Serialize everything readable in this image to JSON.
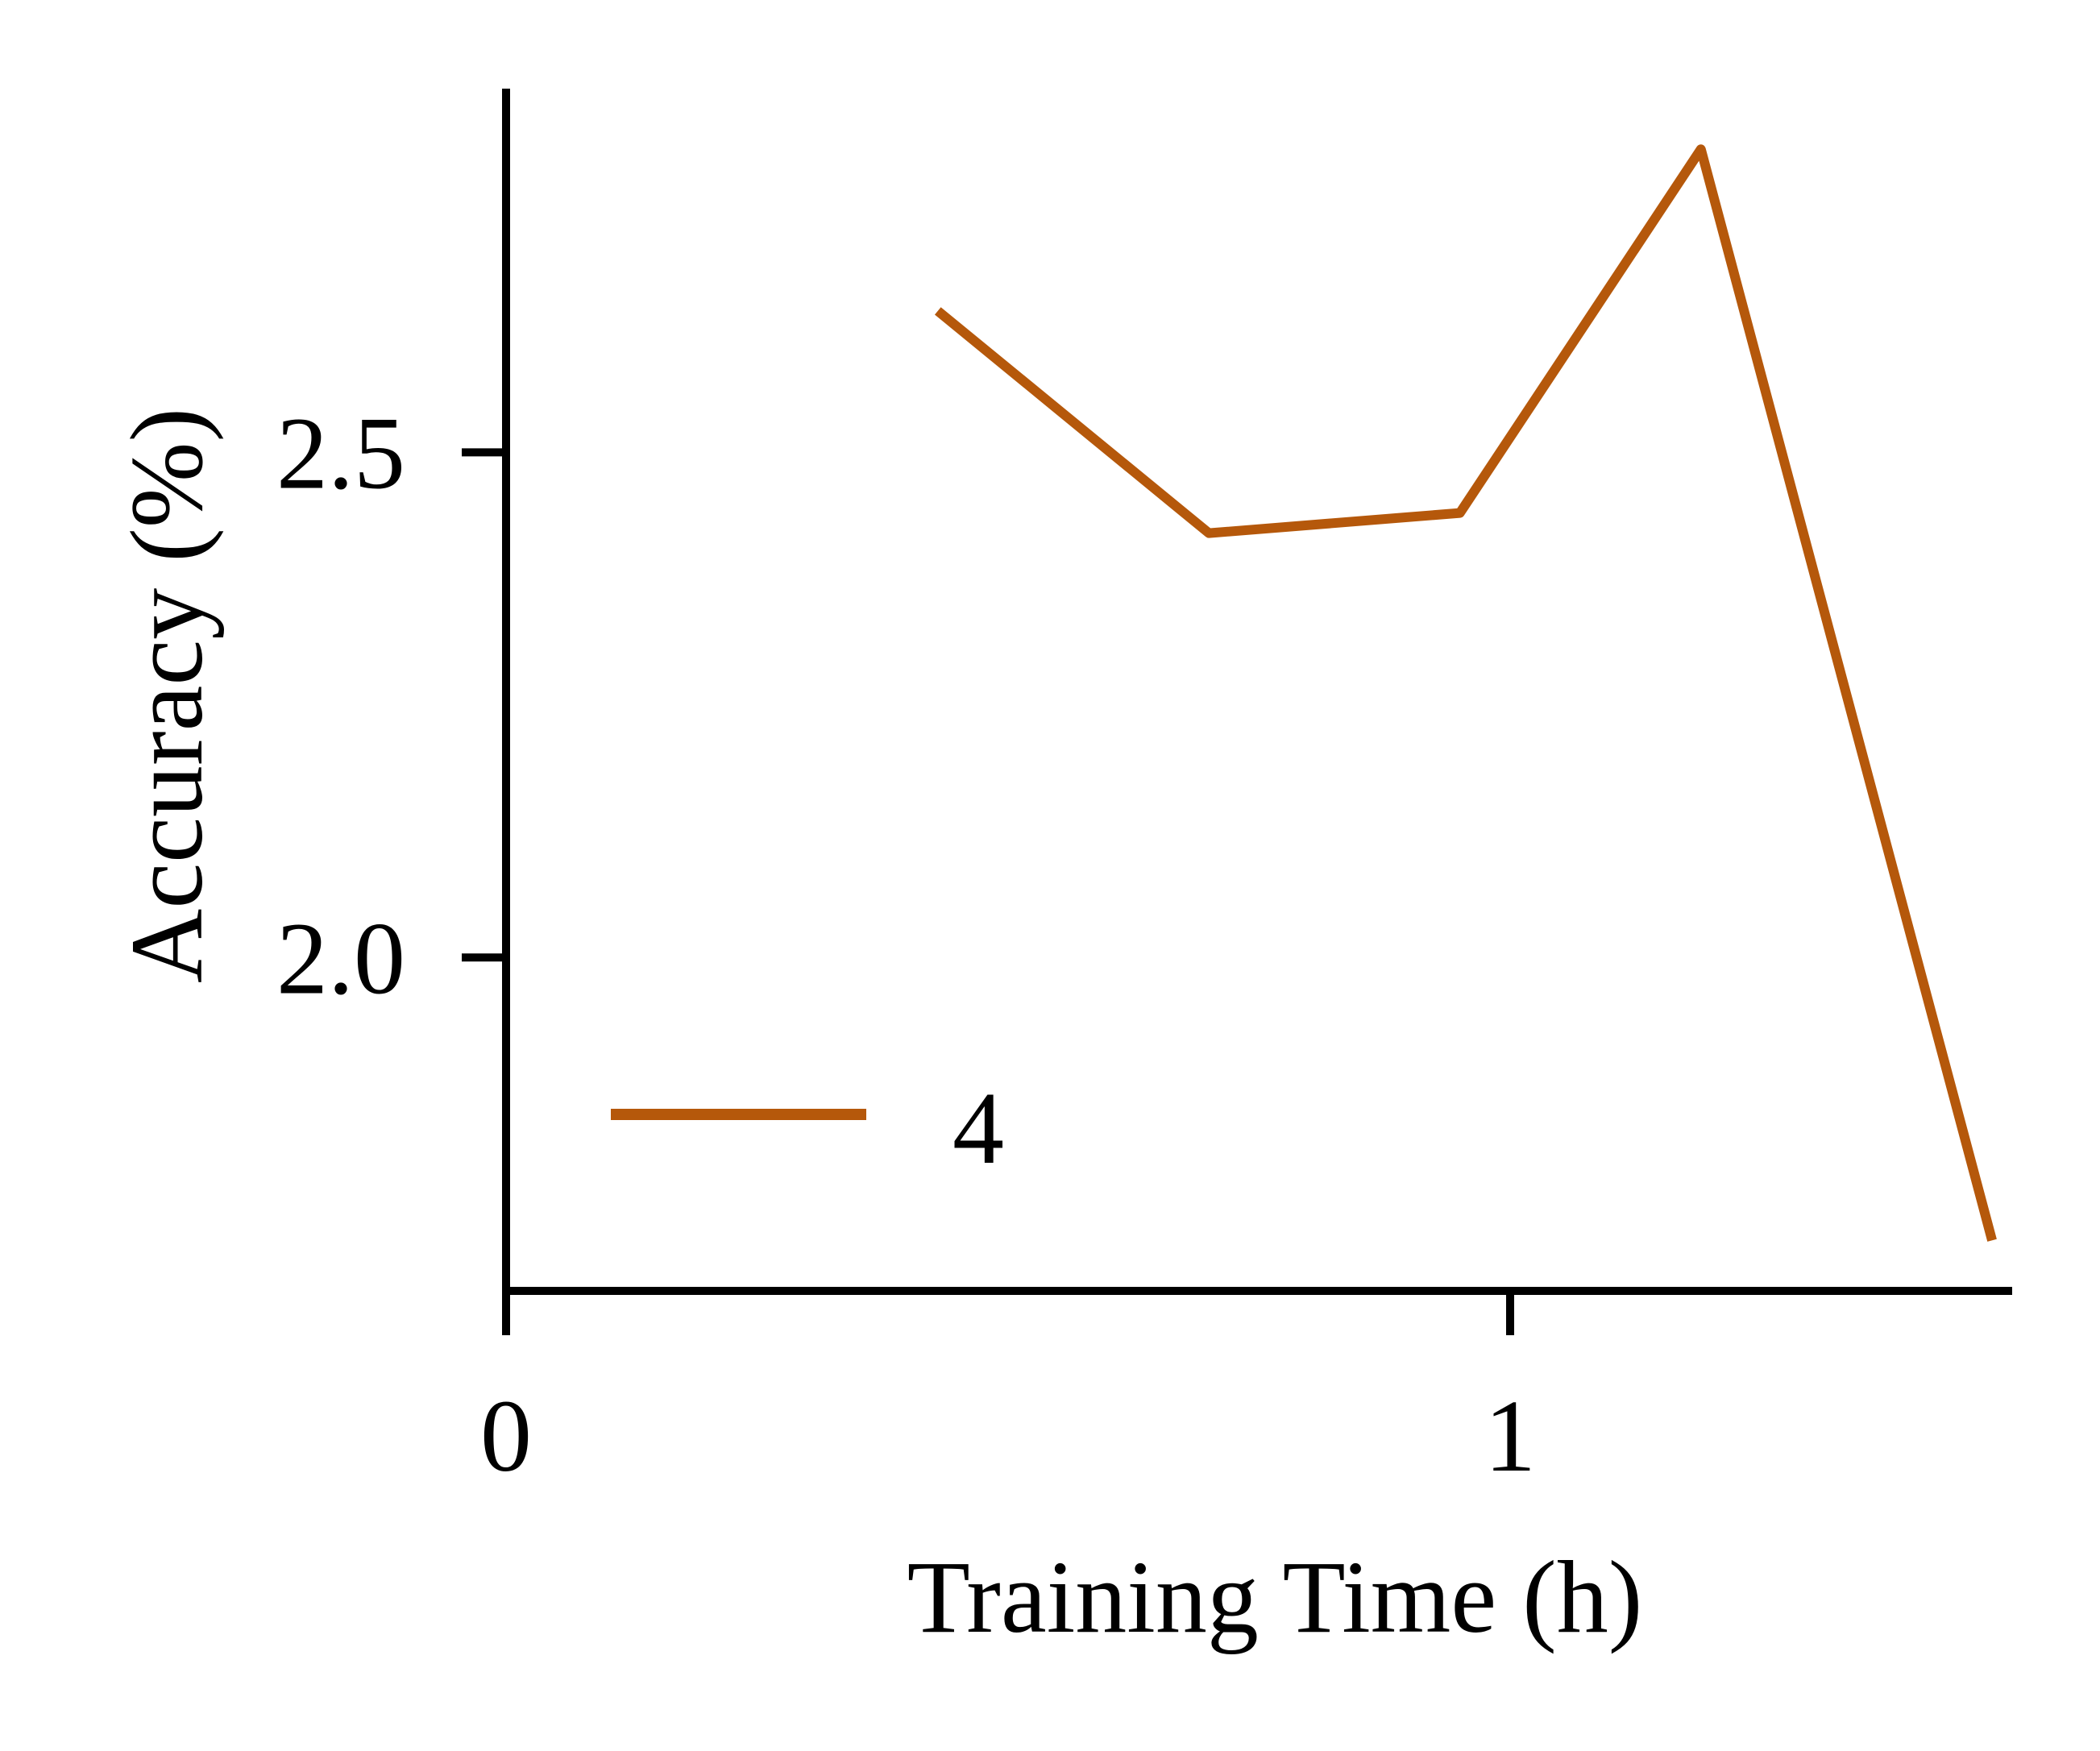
{
  "chart_data": {
    "type": "line",
    "title": "",
    "xlabel": "Training Time (h)",
    "ylabel": "Accuracy (%)",
    "xlim": [
      0,
      1.5
    ],
    "ylim": [
      1.67,
      2.86
    ],
    "x_ticks": [
      {
        "value": 0,
        "label": "0"
      },
      {
        "value": 1,
        "label": "1"
      }
    ],
    "y_ticks": [
      {
        "value": 2.0,
        "label": "2.0"
      },
      {
        "value": 2.5,
        "label": "2.5"
      }
    ],
    "series": [
      {
        "name": "4",
        "color": "#b5580b",
        "x": [
          0.43,
          0.7,
          0.95,
          1.19,
          1.48
        ],
        "y": [
          2.64,
          2.42,
          2.44,
          2.8,
          1.72
        ]
      }
    ],
    "legend": {
      "position": "lower-left",
      "entries": [
        {
          "label": "4",
          "color": "#b5580b"
        }
      ]
    },
    "grid": false,
    "spines": [
      "left",
      "bottom"
    ]
  }
}
